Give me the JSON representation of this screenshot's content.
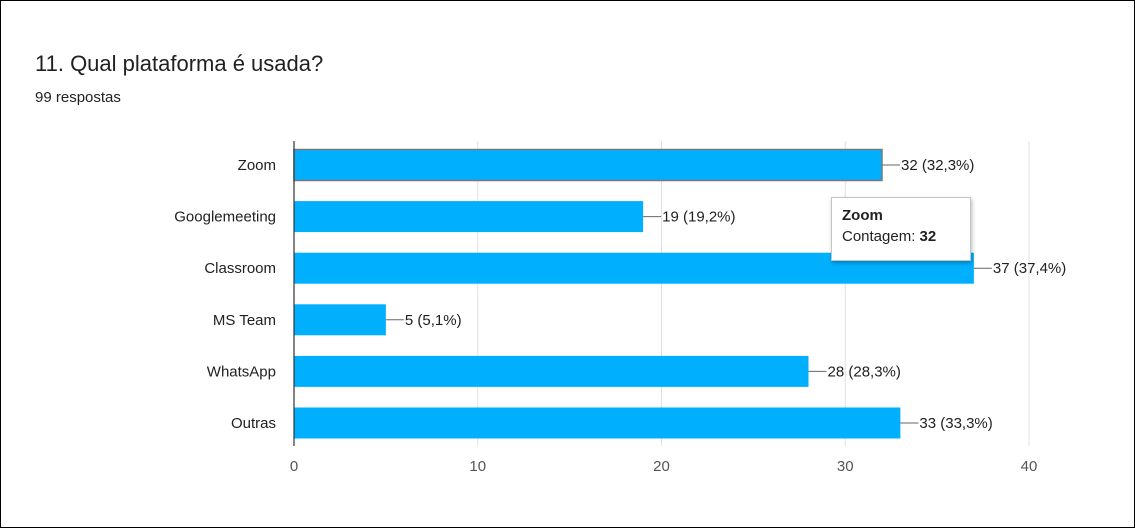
{
  "question": {
    "title": "11. Qual plataforma é usada?",
    "subtitle": "99 respostas"
  },
  "chart_data": {
    "type": "bar",
    "orientation": "horizontal",
    "categories": [
      "Zoom",
      "Googlemeeting",
      "Classroom",
      "MS Team",
      "WhatsApp",
      "Outras"
    ],
    "values": [
      32,
      19,
      37,
      5,
      28,
      33
    ],
    "data_labels": [
      "32 (32,3%)",
      "19 (19,2%)",
      "37 (37,4%)",
      "5 (5,1%)",
      "28 (28,3%)",
      "33 (33,3%)"
    ],
    "xlim": [
      0,
      40
    ],
    "xticks": [
      0,
      10,
      20,
      30,
      40
    ],
    "grid": true,
    "highlighted_category": "Zoom",
    "colors": {
      "bar": "#00b0ff",
      "bar_highlight_outline": "#7a7a7a",
      "grid": "#e0e0e0",
      "axis": "#333333",
      "text": "#202124"
    }
  },
  "tooltip": {
    "title": "Zoom",
    "label": "Contagem:",
    "value": "32"
  }
}
